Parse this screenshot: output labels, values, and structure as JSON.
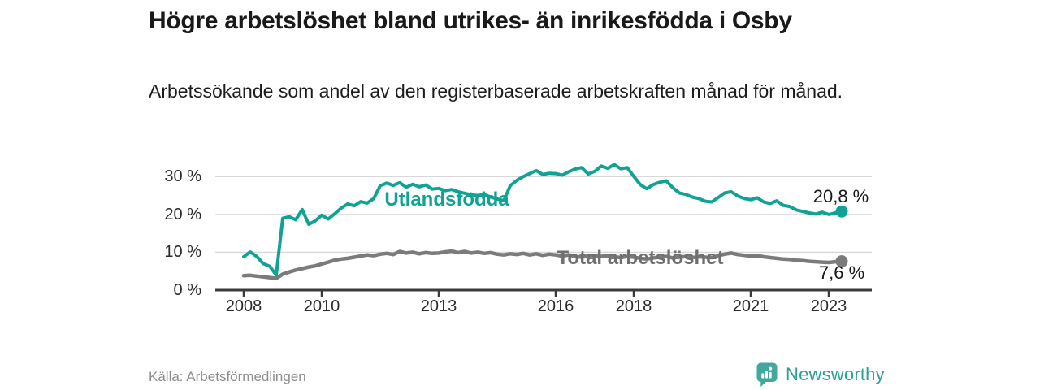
{
  "header": {
    "title": "Högre arbetslöshet bland utrikes- än inrikesfödda i Osby",
    "subtitle": "Arbetssökande som andel av den registerbaserade arbetskraften månad för månad."
  },
  "chart_data": {
    "type": "line",
    "title": "Högre arbetslöshet bland utrikes- än inrikesfödda i Osby",
    "xlabel": "",
    "ylabel": "Arbetssökande som andel av den registerbaserade arbetskraften",
    "grid": true,
    "x_start": 2008.0,
    "x_step_years": 0.1666667,
    "x_end": 2023.33,
    "xlim": [
      2007.3,
      2024.2
    ],
    "ylim": [
      0,
      35
    ],
    "y_ticks": [
      {
        "v": 0,
        "label": "0 %"
      },
      {
        "v": 10,
        "label": "10 %"
      },
      {
        "v": 20,
        "label": "20 %"
      },
      {
        "v": 30,
        "label": "30 %"
      }
    ],
    "x_ticks": [
      {
        "v": 2008,
        "label": "2008"
      },
      {
        "v": 2010,
        "label": "2010"
      },
      {
        "v": 2013,
        "label": "2013"
      },
      {
        "v": 2016,
        "label": "2016"
      },
      {
        "v": 2018,
        "label": "2018"
      },
      {
        "v": 2021,
        "label": "2021"
      },
      {
        "v": 2023,
        "label": "2023"
      }
    ],
    "series": [
      {
        "name": "Utlandsfödda",
        "label": "Utlandsfödda",
        "color": "#10a294",
        "label_color": "#10a294",
        "stroke_width": 4,
        "end_label": "20,8 %",
        "end_value": 20.8,
        "values": [
          8.8,
          10.1,
          8.9,
          7.0,
          6.3,
          4.0,
          19.0,
          19.4,
          18.6,
          21.3,
          17.4,
          18.3,
          19.8,
          18.8,
          20.2,
          21.7,
          22.8,
          22.3,
          23.4,
          23.0,
          24.2,
          27.6,
          28.3,
          27.7,
          28.4,
          27.2,
          28.0,
          27.3,
          27.8,
          26.7,
          26.9,
          26.3,
          26.6,
          26.0,
          25.6,
          25.2,
          25.0,
          25.3,
          24.6,
          24.1,
          23.6,
          27.6,
          29.0,
          30.0,
          30.8,
          31.6,
          30.6,
          30.9,
          30.8,
          30.4,
          31.3,
          32.0,
          32.4,
          30.7,
          31.4,
          32.8,
          32.2,
          33.2,
          32.1,
          32.4,
          30.1,
          27.9,
          26.8,
          27.9,
          28.5,
          28.9,
          27.1,
          25.7,
          25.3,
          24.6,
          24.2,
          23.5,
          23.3,
          24.5,
          25.7,
          26.0,
          24.9,
          24.2,
          23.9,
          24.4,
          23.3,
          22.9,
          23.6,
          22.4,
          22.1,
          21.2,
          20.8,
          20.4,
          20.1,
          20.6,
          20.0,
          20.4,
          20.8
        ]
      },
      {
        "name": "Total arbetslöshet",
        "label": "Total arbetslöshet",
        "color": "#7b7b7b",
        "label_color": "#6f6f6f",
        "stroke_width": 4.5,
        "end_label": "7,6 %",
        "end_value": 7.6,
        "values": [
          3.8,
          3.9,
          3.7,
          3.5,
          3.3,
          3.1,
          4.2,
          4.8,
          5.3,
          5.7,
          6.1,
          6.4,
          6.9,
          7.4,
          7.9,
          8.2,
          8.4,
          8.7,
          9.0,
          9.3,
          9.1,
          9.5,
          9.7,
          9.4,
          10.2,
          9.8,
          10.0,
          9.6,
          9.9,
          9.7,
          9.8,
          10.1,
          10.3,
          9.9,
          10.2,
          9.8,
          10.0,
          9.7,
          9.9,
          9.5,
          9.3,
          9.6,
          9.4,
          9.7,
          9.3,
          9.6,
          9.2,
          9.5,
          9.3,
          9.0,
          9.3,
          8.9,
          8.7,
          9.0,
          9.2,
          8.9,
          9.1,
          8.8,
          8.6,
          8.9,
          8.7,
          8.4,
          8.2,
          8.5,
          8.7,
          8.9,
          8.5,
          8.7,
          8.9,
          8.6,
          8.8,
          8.7,
          8.6,
          9.1,
          9.5,
          9.8,
          9.4,
          9.2,
          9.0,
          9.1,
          8.8,
          8.6,
          8.4,
          8.2,
          8.1,
          7.9,
          7.8,
          7.6,
          7.5,
          7.4,
          7.3,
          7.5,
          7.6
        ]
      }
    ],
    "legend_position": "inline-labels"
  },
  "footer": {
    "source": "Källa: Arbetsförmedlingen",
    "brand": "Newsworthy"
  },
  "colors": {
    "accent": "#10a294",
    "series_gray": "#7b7b7b",
    "grid": "#d8d8d8",
    "axis": "#3b3b3b",
    "title_text": "#191919",
    "muted_text": "#8d8d8d",
    "logo_pin": "#43a79d",
    "logo_text": "#2d9f95"
  }
}
